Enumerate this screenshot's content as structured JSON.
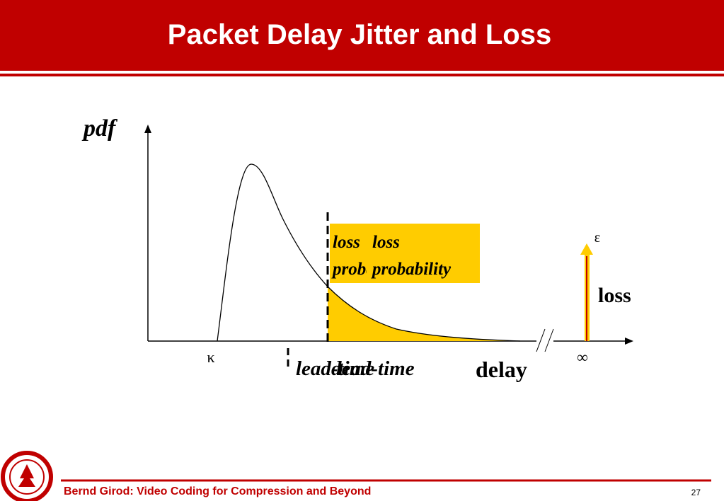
{
  "header": {
    "title": "Packet Delay Jitter and Loss"
  },
  "diagram": {
    "y_label": "pdf",
    "x_label": "delay",
    "kappa": "κ",
    "infinity": "∞",
    "epsilon": "ε",
    "loss": "loss",
    "box_labels": [
      [
        "loss",
        "probability"
      ],
      [
        "loss",
        "probability"
      ]
    ],
    "time_labels": [
      "lead-time",
      "dead-time"
    ]
  },
  "footer": {
    "text": "Bernd Girod: Video Coding for Compression and Beyond",
    "page": "27"
  }
}
